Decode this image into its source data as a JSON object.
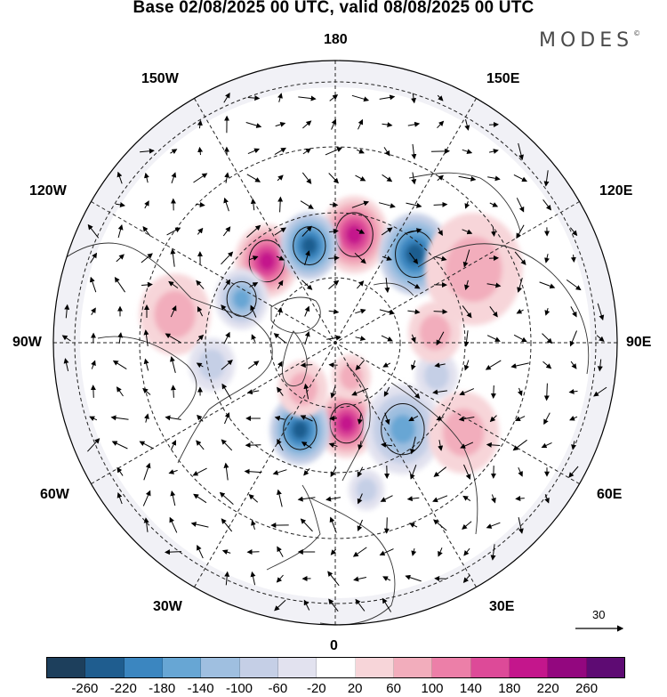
{
  "title": "Base 02/08/2025 00 UTC, valid 08/08/2025 00 UTC",
  "brand": "MODES",
  "brand_mark": "©",
  "longitude_labels": {
    "top": "180",
    "bottom": "0",
    "left": "90W",
    "right": "90E",
    "upper_left_inner": "150W",
    "upper_left_outer": "120W",
    "upper_right_inner": "150E",
    "upper_right_outer": "120E",
    "lower_left_outer": "60W",
    "lower_left_inner": "30W",
    "lower_right_outer": "60E",
    "lower_right_inner": "30E"
  },
  "wind_reference": {
    "value": "30"
  },
  "colorbar": {
    "colors": [
      "#1d3f5c",
      "#1f5d8f",
      "#3b86c0",
      "#67a6d4",
      "#9fbfe0",
      "#c5cfe6",
      "#e2e2ef",
      "#ffffff",
      "#f7d5d9",
      "#f2adbc",
      "#ec7fa8",
      "#dd4a98",
      "#c4168c",
      "#93077f",
      "#5e0b73"
    ],
    "ticks": [
      "-260",
      "-220",
      "-180",
      "-140",
      "-100",
      "-60",
      "-20",
      "20",
      "60",
      "100",
      "140",
      "180",
      "220",
      "260"
    ]
  },
  "anomaly_features": [
    {
      "sign": "positive",
      "strength": "strong",
      "lon": -140,
      "lat": 56,
      "size": 36
    },
    {
      "sign": "positive",
      "strength": "strong",
      "lon": 170,
      "lat": 55,
      "size": 38
    },
    {
      "sign": "positive",
      "strength": "strong",
      "lon": 8,
      "lat": 64,
      "size": 34
    },
    {
      "sign": "negative",
      "strength": "strong",
      "lon": -165,
      "lat": 58,
      "size": 33
    },
    {
      "sign": "negative",
      "strength": "strong",
      "lon": 138,
      "lat": 52,
      "size": 40
    },
    {
      "sign": "negative",
      "strength": "strong",
      "lon": -22,
      "lat": 60,
      "size": 34
    },
    {
      "sign": "negative",
      "strength": "moderate",
      "lon": 38,
      "lat": 55,
      "size": 44
    },
    {
      "sign": "negative",
      "strength": "moderate",
      "lon": -115,
      "lat": 57,
      "size": 30
    },
    {
      "sign": "negative",
      "strength": "weak",
      "lon": 72,
      "lat": 56,
      "size": 24
    },
    {
      "sign": "positive",
      "strength": "weak",
      "lon": 96,
      "lat": 58,
      "size": 30
    },
    {
      "sign": "positive",
      "strength": "weak",
      "lon": 118,
      "lat": 40,
      "size": 55
    },
    {
      "sign": "positive",
      "strength": "weak",
      "lon": -100,
      "lat": 38,
      "size": 40
    },
    {
      "sign": "negative",
      "strength": "weak",
      "lon": -80,
      "lat": 50,
      "size": 26
    },
    {
      "sign": "positive",
      "strength": "weak",
      "lon": -35,
      "lat": 72,
      "size": 28
    },
    {
      "sign": "positive",
      "strength": "weak",
      "lon": 25,
      "lat": 78,
      "size": 22
    },
    {
      "sign": "negative",
      "strength": "weak",
      "lon": 12,
      "lat": 42,
      "size": 20
    },
    {
      "sign": "positive",
      "strength": "weak",
      "lon": 55,
      "lat": 40,
      "size": 40
    }
  ]
}
